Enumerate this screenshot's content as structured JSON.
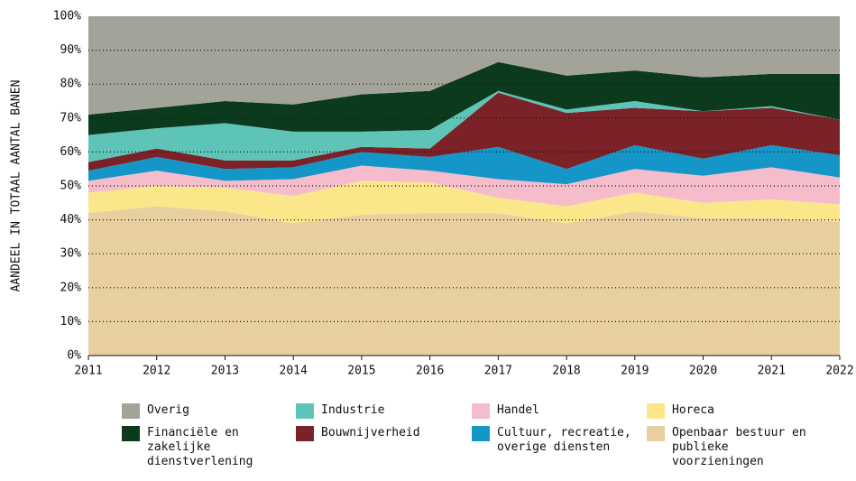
{
  "chart_data": {
    "type": "stacked_area",
    "y_label": "AANDEEL IN TOTAAL AANTAL BANEN",
    "x": [
      2011,
      2012,
      2013,
      2014,
      2015,
      2016,
      2017,
      2018,
      2019,
      2020,
      2021,
      2022
    ],
    "xlim": [
      2011,
      2022
    ],
    "ylim": [
      0,
      100
    ],
    "yticks": [
      {
        "value": 0,
        "label": "0%"
      },
      {
        "value": 10,
        "label": "10%"
      },
      {
        "value": 20,
        "label": "20%"
      },
      {
        "value": 30,
        "label": "30%"
      },
      {
        "value": 40,
        "label": "40%"
      },
      {
        "value": 50,
        "label": "50%"
      },
      {
        "value": 60,
        "label": "60%"
      },
      {
        "value": 70,
        "label": "70%"
      },
      {
        "value": 80,
        "label": "80%"
      },
      {
        "value": 90,
        "label": "90%"
      },
      {
        "value": 100,
        "label": "100%"
      }
    ],
    "grid": true,
    "series": [
      {
        "name": "Openbaar bestuur en publieke voorzieningen",
        "color": "#e8cfa0",
        "values": [
          42,
          44,
          42.5,
          39,
          41.5,
          42,
          42,
          39,
          42.5,
          40.5,
          40.5,
          39.5
        ]
      },
      {
        "name": "Horeca",
        "color": "#fbe78a",
        "values": [
          6,
          6,
          7,
          8,
          10,
          9,
          4.5,
          5,
          5.5,
          4.5,
          5.5,
          5
        ]
      },
      {
        "name": "Handel",
        "color": "#f5bccb",
        "values": [
          3.5,
          4.5,
          2,
          5,
          4.5,
          3.5,
          5.5,
          6.5,
          7,
          8,
          9.5,
          8
        ]
      },
      {
        "name": "Cultuur, recreatie, overige diensten",
        "color": "#1596c8",
        "values": [
          3,
          4,
          3.5,
          3.5,
          4,
          4,
          9.5,
          4.5,
          7,
          5,
          6.5,
          6.5
        ]
      },
      {
        "name": "Bouwnijverheid",
        "color": "#7a2228",
        "values": [
          2.5,
          2.5,
          2.5,
          2,
          1.5,
          2.5,
          16,
          16.5,
          11,
          14,
          11,
          10.5
        ]
      },
      {
        "name": "Industrie",
        "color": "#5fc4b8",
        "values": [
          8,
          6,
          11,
          8.5,
          4.5,
          5.5,
          0.5,
          1,
          2,
          0,
          0.5,
          0
        ]
      },
      {
        "name": "Financiële en zakelijke dienstverlening",
        "color": "#0c3a1d",
        "values": [
          6,
          6,
          6.5,
          8,
          11,
          11.5,
          8.5,
          10,
          9,
          10,
          9.5,
          13.5
        ]
      },
      {
        "name": "Overig",
        "color": "#a3a39a",
        "values": [
          29,
          27,
          25,
          26,
          23,
          22,
          13.5,
          17.5,
          16,
          18,
          17,
          17
        ]
      }
    ],
    "legend_order": [
      7,
      5,
      2,
      1,
      6,
      4,
      3,
      0
    ]
  }
}
